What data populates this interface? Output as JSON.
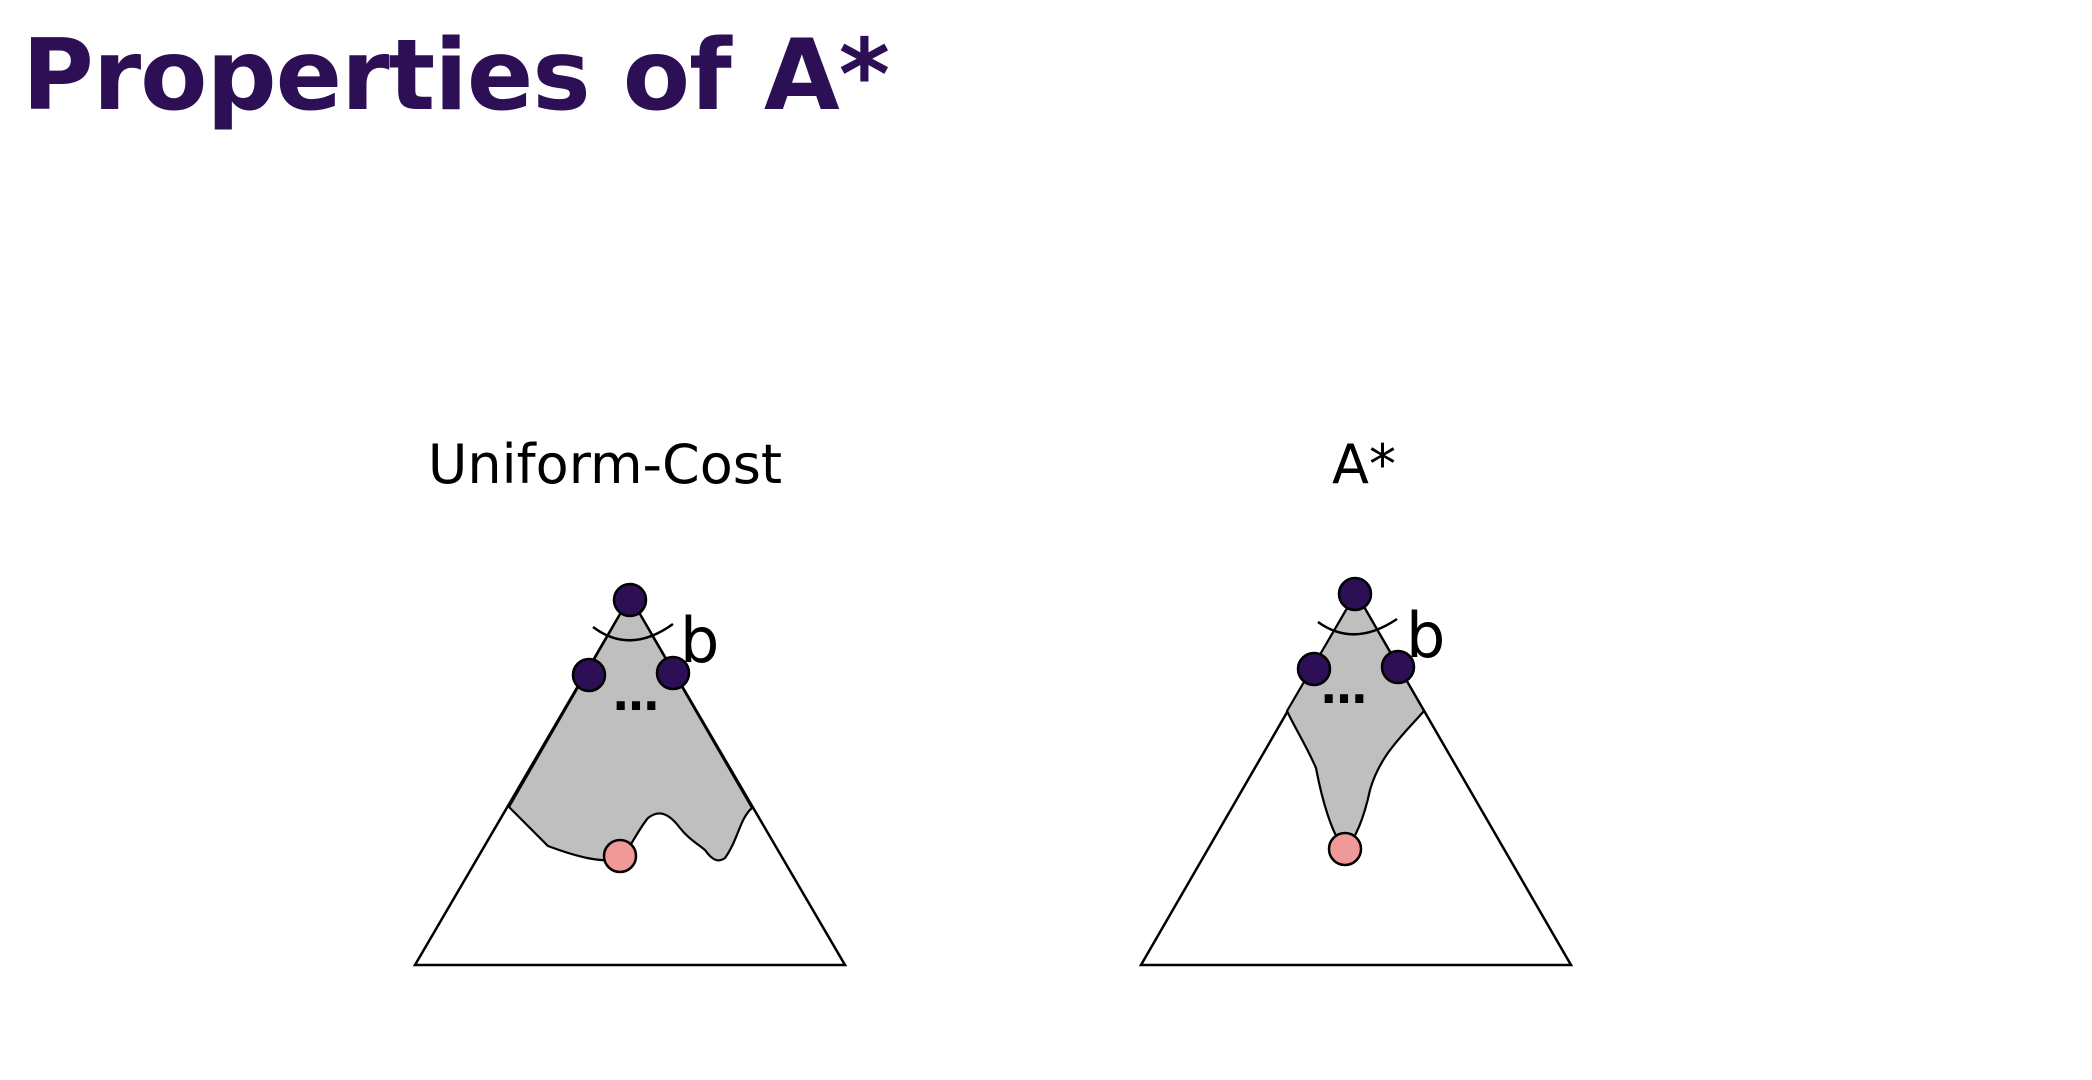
{
  "slide": {
    "title": "Properties of A*"
  },
  "diagrams": [
    {
      "label": "Uniform-Cost",
      "branching_label": "b",
      "ellipsis": "…"
    },
    {
      "label": "A*",
      "branching_label": "b",
      "ellipsis": "…"
    }
  ],
  "colors": {
    "title": "#2c0f54",
    "frontier_node": "#2c0f54",
    "goal_node": "#ef9a98",
    "explored_region": "#bfbfbf"
  }
}
